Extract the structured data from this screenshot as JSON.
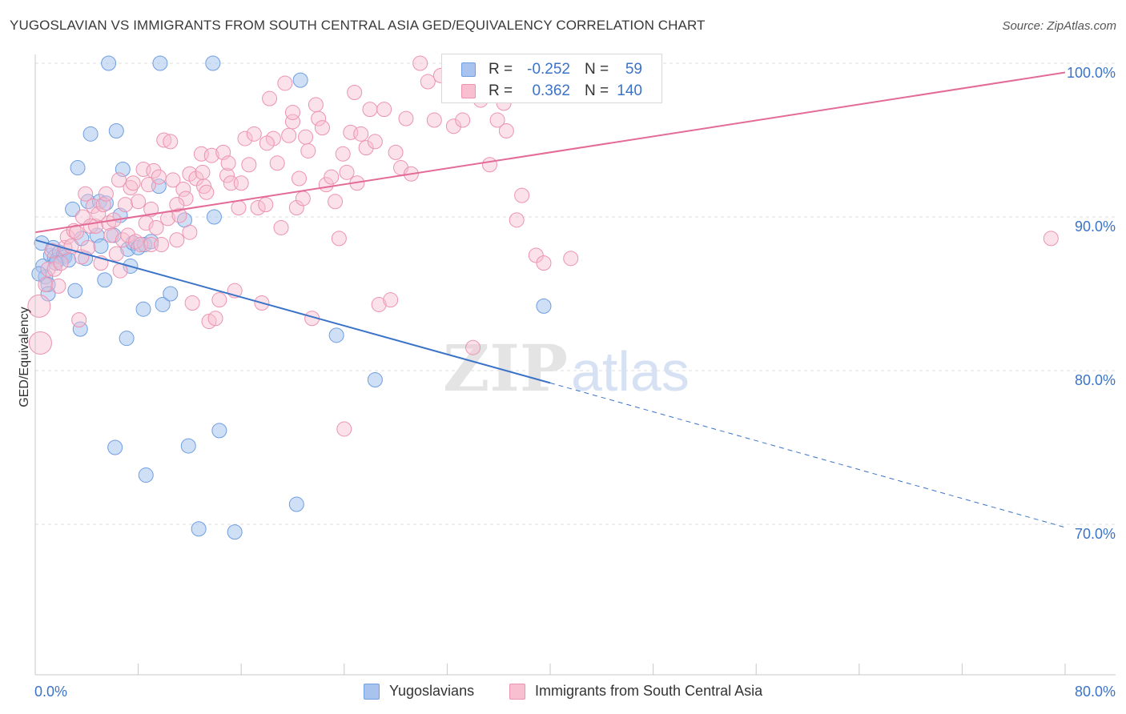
{
  "title": "YUGOSLAVIAN VS IMMIGRANTS FROM SOUTH CENTRAL ASIA GED/EQUIVALENCY CORRELATION CHART",
  "source": "Source: ZipAtlas.com",
  "watermark": "ZIPatlas",
  "legend_stats": [
    {
      "swatch_color": "#a8c4ee",
      "border_color": "#6f9ee0",
      "r_label": "R =",
      "r_value": "-0.252",
      "n_label": "N =",
      "n_value": "59"
    },
    {
      "swatch_color": "#f7bfd0",
      "border_color": "#ec93b0",
      "r_label": "R =",
      "r_value": "0.362",
      "n_label": "N =",
      "n_value": "140"
    }
  ],
  "legend_bottom": [
    {
      "label": "Yugoslavians",
      "swatch_color": "#a8c4ee",
      "border_color": "#6f9ee0"
    },
    {
      "label": "Immigrants from South Central Asia",
      "swatch_color": "#f7bfd0",
      "border_color": "#ec93b0"
    }
  ],
  "chart_data": {
    "type": "scatter",
    "title": "YUGOSLAVIAN VS IMMIGRANTS FROM SOUTH CENTRAL ASIA GED/EQUIVALENCY CORRELATION CHART",
    "xlabel": "",
    "ylabel": "GED/Equivalency",
    "xlim": [
      0,
      80
    ],
    "ylim": [
      60,
      102
    ],
    "x_tick_labels": [
      "0.0%",
      "80.0%"
    ],
    "y_tick_labels": [
      "70.0%",
      "80.0%",
      "90.0%",
      "100.0%"
    ],
    "y_ticks": [
      70,
      80,
      90,
      100
    ],
    "grid": true,
    "legend_position": "top-center",
    "colors": {
      "blue": "#3b73c8",
      "pink": "#e36b97"
    },
    "series": [
      {
        "name": "Yugoslavians",
        "color": "#6f9ee0",
        "fill": "#a8c4ee",
        "trend": {
          "x0": 0,
          "y0": 88.5,
          "x1": 40,
          "y1": 79.2,
          "x_dash_end": 80,
          "y_dash_end": 69.8
        },
        "points": [
          [
            0.5,
            88.3
          ],
          [
            0.6,
            86.8
          ],
          [
            0.8,
            86.1
          ],
          [
            1.0,
            85.6
          ],
          [
            1.0,
            85.0
          ],
          [
            1.2,
            87.5
          ],
          [
            1.4,
            88.0
          ],
          [
            1.5,
            87.4
          ],
          [
            1.7,
            87.2
          ],
          [
            1.9,
            87.7
          ],
          [
            2.2,
            87.5
          ],
          [
            2.3,
            87.4
          ],
          [
            2.6,
            87.2
          ],
          [
            2.9,
            90.5
          ],
          [
            3.1,
            85.2
          ],
          [
            3.3,
            93.2
          ],
          [
            3.5,
            82.7
          ],
          [
            3.6,
            88.6
          ],
          [
            3.9,
            87.3
          ],
          [
            4.3,
            95.4
          ],
          [
            4.1,
            91.0
          ],
          [
            4.8,
            88.8
          ],
          [
            5.0,
            91.0
          ],
          [
            5.1,
            88.1
          ],
          [
            5.4,
            85.9
          ],
          [
            5.5,
            90.9
          ],
          [
            5.7,
            100.0
          ],
          [
            6.1,
            88.8
          ],
          [
            6.2,
            75.0
          ],
          [
            6.3,
            95.6
          ],
          [
            6.6,
            90.1
          ],
          [
            6.8,
            93.1
          ],
          [
            7.1,
            82.1
          ],
          [
            7.2,
            87.9
          ],
          [
            7.4,
            86.8
          ],
          [
            7.6,
            88.3
          ],
          [
            8.0,
            88.0
          ],
          [
            8.4,
            84.0
          ],
          [
            8.5,
            88.2
          ],
          [
            8.6,
            73.2
          ],
          [
            9.0,
            88.4
          ],
          [
            9.6,
            92.0
          ],
          [
            9.7,
            100.0
          ],
          [
            9.9,
            84.3
          ],
          [
            10.5,
            85.0
          ],
          [
            11.6,
            89.8
          ],
          [
            11.9,
            75.1
          ],
          [
            12.7,
            69.7
          ],
          [
            13.8,
            100.0
          ],
          [
            13.9,
            90.0
          ],
          [
            14.3,
            76.1
          ],
          [
            15.5,
            69.5
          ],
          [
            20.3,
            71.3
          ],
          [
            20.6,
            98.9
          ],
          [
            23.4,
            82.3
          ],
          [
            26.4,
            79.4
          ],
          [
            39.5,
            84.2
          ],
          [
            0.3,
            86.3
          ],
          [
            1.6,
            87.0
          ]
        ]
      },
      {
        "name": "Immigrants from South Central Asia",
        "color": "#ec93b0",
        "fill": "#f7bfd0",
        "trend": {
          "x0": 0,
          "y0": 89.0,
          "x1": 80,
          "y1": 99.4
        },
        "points": [
          [
            0.3,
            84.2
          ],
          [
            0.4,
            81.8
          ],
          [
            0.8,
            85.6
          ],
          [
            1.0,
            86.6
          ],
          [
            1.3,
            87.8
          ],
          [
            1.5,
            86.6
          ],
          [
            1.8,
            85.5
          ],
          [
            2.0,
            87.0
          ],
          [
            2.3,
            88.0
          ],
          [
            2.5,
            88.7
          ],
          [
            2.8,
            88.1
          ],
          [
            3.0,
            89.1
          ],
          [
            3.2,
            89.0
          ],
          [
            3.4,
            83.3
          ],
          [
            3.6,
            87.4
          ],
          [
            3.7,
            90.0
          ],
          [
            3.9,
            91.5
          ],
          [
            4.1,
            88.0
          ],
          [
            4.3,
            89.4
          ],
          [
            4.5,
            90.7
          ],
          [
            4.7,
            89.4
          ],
          [
            4.9,
            90.2
          ],
          [
            5.1,
            87.0
          ],
          [
            5.3,
            90.8
          ],
          [
            5.5,
            91.5
          ],
          [
            5.7,
            89.6
          ],
          [
            5.9,
            88.8
          ],
          [
            6.1,
            89.8
          ],
          [
            6.3,
            87.6
          ],
          [
            6.6,
            86.5
          ],
          [
            6.8,
            88.5
          ],
          [
            7.0,
            90.8
          ],
          [
            7.2,
            88.8
          ],
          [
            7.4,
            91.9
          ],
          [
            7.6,
            92.2
          ],
          [
            7.8,
            88.4
          ],
          [
            8.0,
            91.0
          ],
          [
            8.2,
            88.2
          ],
          [
            8.4,
            93.1
          ],
          [
            8.6,
            89.6
          ],
          [
            8.8,
            92.1
          ],
          [
            9.0,
            88.2
          ],
          [
            9.2,
            93.0
          ],
          [
            9.4,
            89.3
          ],
          [
            9.6,
            92.6
          ],
          [
            9.8,
            88.2
          ],
          [
            10.0,
            95.0
          ],
          [
            10.3,
            89.9
          ],
          [
            10.5,
            94.9
          ],
          [
            10.7,
            92.4
          ],
          [
            11.0,
            88.5
          ],
          [
            11.2,
            90.1
          ],
          [
            11.5,
            91.8
          ],
          [
            11.7,
            91.2
          ],
          [
            12.0,
            92.8
          ],
          [
            12.2,
            84.4
          ],
          [
            12.5,
            92.5
          ],
          [
            12.9,
            94.1
          ],
          [
            13.1,
            92.0
          ],
          [
            13.3,
            91.6
          ],
          [
            13.5,
            83.2
          ],
          [
            13.7,
            94.0
          ],
          [
            14.0,
            83.4
          ],
          [
            14.3,
            84.6
          ],
          [
            14.6,
            94.2
          ],
          [
            14.9,
            92.7
          ],
          [
            15.2,
            92.2
          ],
          [
            15.5,
            85.2
          ],
          [
            15.8,
            90.6
          ],
          [
            16.0,
            92.2
          ],
          [
            16.3,
            95.1
          ],
          [
            16.6,
            93.4
          ],
          [
            17.0,
            95.4
          ],
          [
            17.3,
            90.6
          ],
          [
            17.6,
            84.4
          ],
          [
            17.9,
            90.8
          ],
          [
            18.2,
            97.7
          ],
          [
            18.5,
            95.1
          ],
          [
            18.8,
            93.5
          ],
          [
            19.1,
            89.3
          ],
          [
            19.4,
            98.7
          ],
          [
            19.7,
            95.3
          ],
          [
            20.0,
            96.2
          ],
          [
            20.3,
            90.6
          ],
          [
            20.5,
            92.5
          ],
          [
            20.8,
            91.2
          ],
          [
            21.0,
            95.2
          ],
          [
            21.2,
            94.3
          ],
          [
            21.5,
            83.4
          ],
          [
            21.8,
            97.3
          ],
          [
            22.0,
            96.4
          ],
          [
            22.3,
            95.8
          ],
          [
            22.6,
            92.1
          ],
          [
            23.0,
            92.6
          ],
          [
            23.3,
            91.0
          ],
          [
            23.6,
            88.6
          ],
          [
            23.9,
            94.1
          ],
          [
            24.2,
            92.9
          ],
          [
            24.5,
            95.5
          ],
          [
            24.8,
            98.1
          ],
          [
            25.0,
            92.2
          ],
          [
            25.3,
            95.4
          ],
          [
            25.7,
            94.5
          ],
          [
            26.0,
            97.0
          ],
          [
            26.4,
            94.9
          ],
          [
            26.7,
            84.3
          ],
          [
            27.1,
            97.0
          ],
          [
            27.6,
            84.6
          ],
          [
            28.0,
            94.2
          ],
          [
            28.4,
            93.2
          ],
          [
            28.8,
            96.4
          ],
          [
            29.2,
            92.8
          ],
          [
            30.5,
            98.8
          ],
          [
            31.0,
            96.3
          ],
          [
            31.5,
            99.2
          ],
          [
            32.5,
            95.9
          ],
          [
            33.2,
            96.3
          ],
          [
            34.0,
            81.5
          ],
          [
            34.6,
            97.6
          ],
          [
            35.3,
            93.4
          ],
          [
            35.9,
            96.3
          ],
          [
            36.6,
            95.6
          ],
          [
            37.4,
            89.8
          ],
          [
            37.8,
            91.4
          ],
          [
            38.9,
            87.5
          ],
          [
            39.5,
            87.0
          ],
          [
            41.6,
            87.3
          ],
          [
            36.4,
            97.4
          ],
          [
            24.0,
            76.2
          ],
          [
            78.9,
            88.6
          ],
          [
            29.9,
            100.0
          ],
          [
            34.5,
            98.5
          ],
          [
            12.0,
            89.0
          ],
          [
            15.0,
            93.5
          ],
          [
            18.0,
            94.8
          ],
          [
            9.0,
            90.5
          ],
          [
            6.5,
            92.4
          ],
          [
            11.0,
            90.8
          ],
          [
            13.0,
            92.9
          ],
          [
            20.0,
            96.8
          ]
        ]
      }
    ]
  }
}
